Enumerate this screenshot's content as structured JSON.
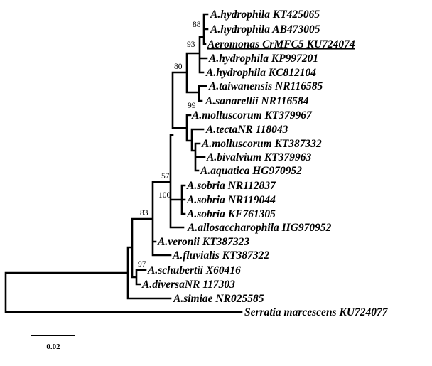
{
  "tree": {
    "leaves": [
      {
        "label": "A.hydrophila KT425065"
      },
      {
        "label": "A.hydrophila AB473005"
      },
      {
        "label": "Aeromonas CrMFC5 KU724074",
        "underlined": true
      },
      {
        "label": "A.hydrophila KP997201"
      },
      {
        "label": "A.hydrophila  KC812104"
      },
      {
        "label": "A.taiwanensis NR116585"
      },
      {
        "label": "A.sanarellii NR116584"
      },
      {
        "label": "A.molluscorum KT379967"
      },
      {
        "label": "A.tectaNR 118043"
      },
      {
        "label": "A.molluscorum KT387332"
      },
      {
        "label": "A.bivalvium KT379963"
      },
      {
        "label": "A.aquatica HG970952"
      },
      {
        "label": "A.sobria NR112837"
      },
      {
        "label": "A.sobria NR119044"
      },
      {
        "label": "A.sobria KF761305"
      },
      {
        "label": "A.allosaccharophila HG970952"
      },
      {
        "label": "A.veronii KT387323"
      },
      {
        "label": "A.fluvialis KT387322"
      },
      {
        "label": "A.schubertii X60416"
      },
      {
        "label": "A.diversaNR 117303"
      },
      {
        "label": "A.simiae NR025585"
      },
      {
        "label": "Serratia marcescens KU724077"
      }
    ],
    "bootstrap": [
      "88",
      "93",
      "80",
      "99",
      "57",
      "100",
      "83",
      "97"
    ],
    "scale_bar": {
      "label": "0.02"
    },
    "line_color": "#000000"
  }
}
